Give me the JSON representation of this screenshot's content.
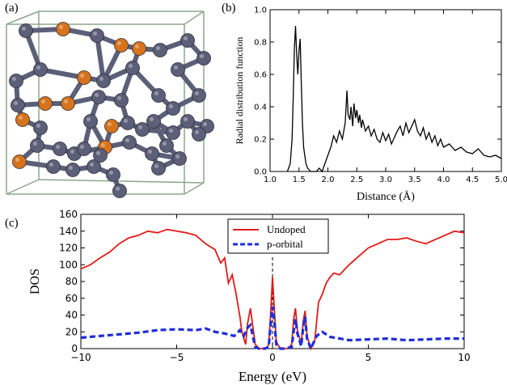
{
  "panels": {
    "a": {
      "label": "(a)"
    },
    "b": {
      "label": "(b)"
    },
    "c": {
      "label": "(c)"
    }
  },
  "structure": {
    "atom_colors": {
      "host": "#5c5f78",
      "dopant": "#d6731c"
    },
    "cell_color": "#8aa88a"
  },
  "chart_data": [
    {
      "type": "line",
      "panel": "b",
      "title": "",
      "xlabel": "Distance (Å)",
      "ylabel": "Radial distribution function",
      "xlim": [
        1.0,
        5.0
      ],
      "ylim": [
        0.0,
        1.0
      ],
      "xticks": [
        "1.0",
        "1.5",
        "2.0",
        "2.5",
        "3.0",
        "3.5",
        "4.0",
        "4.5",
        "5.0"
      ],
      "yticks": [
        "0.0",
        "0.2",
        "0.4",
        "0.6",
        "0.8",
        "1.0"
      ],
      "grid": false,
      "series": [
        {
          "color": "#000000",
          "x": [
            1.3,
            1.35,
            1.38,
            1.4,
            1.42,
            1.44,
            1.46,
            1.48,
            1.5,
            1.52,
            1.54,
            1.56,
            1.58,
            1.6,
            1.62,
            1.65,
            1.7,
            1.8,
            1.85,
            1.9,
            1.95,
            2.0,
            2.05,
            2.1,
            2.15,
            2.2,
            2.25,
            2.3,
            2.33,
            2.35,
            2.38,
            2.4,
            2.43,
            2.45,
            2.48,
            2.5,
            2.53,
            2.55,
            2.58,
            2.6,
            2.65,
            2.7,
            2.75,
            2.8,
            2.85,
            2.9,
            2.95,
            3.0,
            3.05,
            3.1,
            3.15,
            3.2,
            3.25,
            3.3,
            3.35,
            3.4,
            3.45,
            3.5,
            3.55,
            3.6,
            3.65,
            3.7,
            3.75,
            3.8,
            3.85,
            3.9,
            3.95,
            4.0,
            4.1,
            4.2,
            4.3,
            4.4,
            4.5,
            4.6,
            4.7,
            4.8,
            4.9,
            5.0
          ],
          "y": [
            0.0,
            0.05,
            0.2,
            0.45,
            0.75,
            0.9,
            0.72,
            0.6,
            0.75,
            0.82,
            0.55,
            0.3,
            0.15,
            0.1,
            0.05,
            0.02,
            0.0,
            0.0,
            0.02,
            0.0,
            0.05,
            0.1,
            0.15,
            0.22,
            0.18,
            0.25,
            0.2,
            0.3,
            0.5,
            0.35,
            0.32,
            0.4,
            0.28,
            0.42,
            0.33,
            0.38,
            0.3,
            0.35,
            0.27,
            0.32,
            0.25,
            0.28,
            0.22,
            0.26,
            0.2,
            0.18,
            0.24,
            0.19,
            0.23,
            0.17,
            0.21,
            0.25,
            0.28,
            0.22,
            0.3,
            0.24,
            0.28,
            0.32,
            0.25,
            0.22,
            0.27,
            0.2,
            0.24,
            0.18,
            0.22,
            0.16,
            0.2,
            0.15,
            0.17,
            0.13,
            0.15,
            0.12,
            0.11,
            0.14,
            0.1,
            0.09,
            0.1,
            0.08
          ]
        }
      ]
    },
    {
      "type": "line",
      "panel": "c",
      "title": "",
      "xlabel": "Energy (eV)",
      "ylabel": "DOS",
      "xlim": [
        -10,
        10
      ],
      "ylim": [
        0,
        160
      ],
      "xticks": [
        "−10",
        "−5",
        "0",
        "5",
        "10"
      ],
      "yticks": [
        "0",
        "20",
        "40",
        "60",
        "80",
        "100",
        "120",
        "140",
        "160"
      ],
      "grid": false,
      "legend": "top-center",
      "fermi_level": 0,
      "series": [
        {
          "name": "Undoped",
          "color": "#e01b1b",
          "style": "solid",
          "x": [
            -10,
            -9.5,
            -9,
            -8.5,
            -8,
            -7.5,
            -7,
            -6.5,
            -6,
            -5.5,
            -5,
            -4.5,
            -4,
            -3.5,
            -3,
            -2.7,
            -2.5,
            -2.3,
            -2.1,
            -1.9,
            -1.7,
            -1.6,
            -1.4,
            -1.3,
            -1.15,
            -1.0,
            -0.9,
            -0.7,
            -0.5,
            -0.3,
            -0.2,
            -0.1,
            0,
            0.1,
            0.2,
            0.4,
            0.6,
            0.8,
            1.0,
            1.1,
            1.2,
            1.3,
            1.5,
            1.6,
            1.7,
            1.8,
            2.0,
            2.2,
            2.4,
            2.6,
            2.8,
            3.0,
            3.2,
            3.5,
            4,
            4.5,
            5,
            5.5,
            6,
            6.5,
            7,
            7.5,
            8,
            8.5,
            9,
            9.5,
            10
          ],
          "y": [
            95,
            100,
            108,
            115,
            125,
            132,
            135,
            140,
            138,
            142,
            140,
            138,
            135,
            125,
            118,
            102,
            108,
            78,
            88,
            65,
            38,
            20,
            5,
            30,
            48,
            22,
            5,
            0,
            0,
            0,
            5,
            40,
            85,
            45,
            8,
            0,
            0,
            0,
            5,
            35,
            48,
            22,
            5,
            32,
            45,
            15,
            0,
            8,
            55,
            65,
            78,
            85,
            90,
            88,
            100,
            110,
            120,
            125,
            130,
            130,
            132,
            128,
            125,
            130,
            135,
            140,
            138
          ]
        },
        {
          "name": "p-orbital",
          "color": "#1f2ed8",
          "style": "dashed",
          "x": [
            -10,
            -9,
            -8,
            -7,
            -6,
            -5,
            -4,
            -3.5,
            -3,
            -2.5,
            -2,
            -1.7,
            -1.5,
            -1.3,
            -1.15,
            -1.0,
            -0.9,
            -0.7,
            -0.4,
            -0.2,
            -0.1,
            0,
            0.1,
            0.2,
            0.4,
            0.7,
            1.0,
            1.1,
            1.2,
            1.3,
            1.5,
            1.6,
            1.7,
            1.8,
            2.0,
            2.3,
            2.6,
            3,
            4,
            5,
            6,
            7,
            8,
            9,
            10
          ],
          "y": [
            13,
            15,
            17,
            19,
            22,
            23,
            22,
            24,
            20,
            18,
            15,
            22,
            15,
            25,
            28,
            12,
            2,
            0,
            0,
            2,
            28,
            50,
            32,
            5,
            0,
            0,
            2,
            20,
            35,
            18,
            3,
            25,
            38,
            12,
            0,
            15,
            20,
            14,
            10,
            11,
            12,
            10,
            11,
            12,
            12
          ]
        }
      ]
    }
  ]
}
